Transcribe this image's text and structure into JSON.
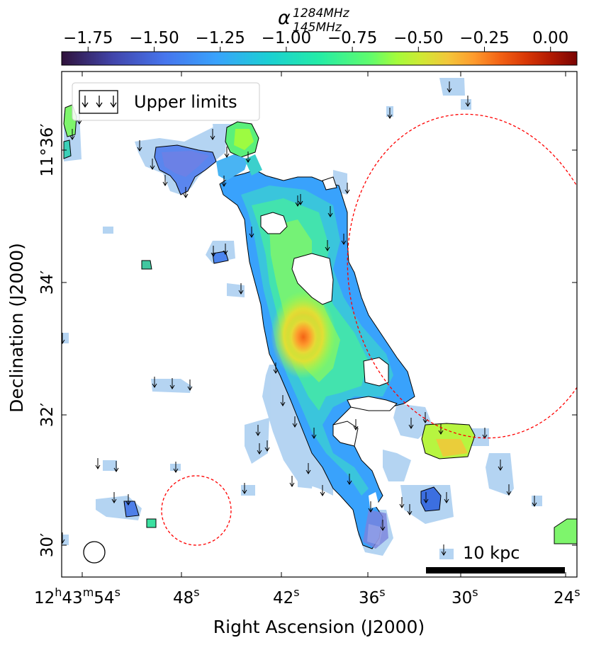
{
  "chart_data": {
    "type": "heatmap",
    "colorbar": {
      "title_main": "α",
      "title_sup": "1284MHz",
      "title_sub": "145MHz",
      "ticks": [
        "−1.75",
        "−1.50",
        "−1.25",
        "−1.00",
        "−0.75",
        "−0.50",
        "−0.25",
        "0.00"
      ],
      "tick_values": [
        -1.75,
        -1.5,
        -1.25,
        -1.0,
        -0.75,
        -0.5,
        -0.25,
        0.0
      ],
      "range": [
        -1.85,
        0.1
      ],
      "colormap": "turbo"
    },
    "xlabel": "Right Ascension (J2000)",
    "ylabel": "Declination (J2000)",
    "x_ticks": [
      {
        "value": "12h43m54s",
        "hour": "12",
        "min": "43",
        "sec": "54",
        "sec_value": 54
      },
      {
        "value": "48s",
        "sec": "48",
        "sec_value": 48
      },
      {
        "value": "42s",
        "sec": "42",
        "sec_value": 42
      },
      {
        "value": "36s",
        "sec": "36",
        "sec_value": 36
      },
      {
        "value": "30s",
        "sec": "30",
        "sec_value": 30
      },
      {
        "value": "24s",
        "sec": "24",
        "sec_value": 24
      }
    ],
    "y_ticks": [
      {
        "label": "11°36′",
        "arcmin": 36
      },
      {
        "label": "34′",
        "arcmin": 34
      },
      {
        "label": "32′",
        "arcmin": 32
      },
      {
        "label": "30′",
        "arcmin": 30
      }
    ],
    "legend": {
      "label": "Upper limits",
      "placement": "top-left"
    },
    "scalebar": {
      "label": "10 kpc",
      "placement": "bottom-right"
    },
    "beam": {
      "placement": "bottom-left"
    },
    "regions": [
      {
        "name": "large-ellipse",
        "color": "#ff0000",
        "style": "dashed"
      },
      {
        "name": "small-circle",
        "color": "#ff0000",
        "style": "dashed"
      }
    ],
    "peak_value": -0.2
  }
}
